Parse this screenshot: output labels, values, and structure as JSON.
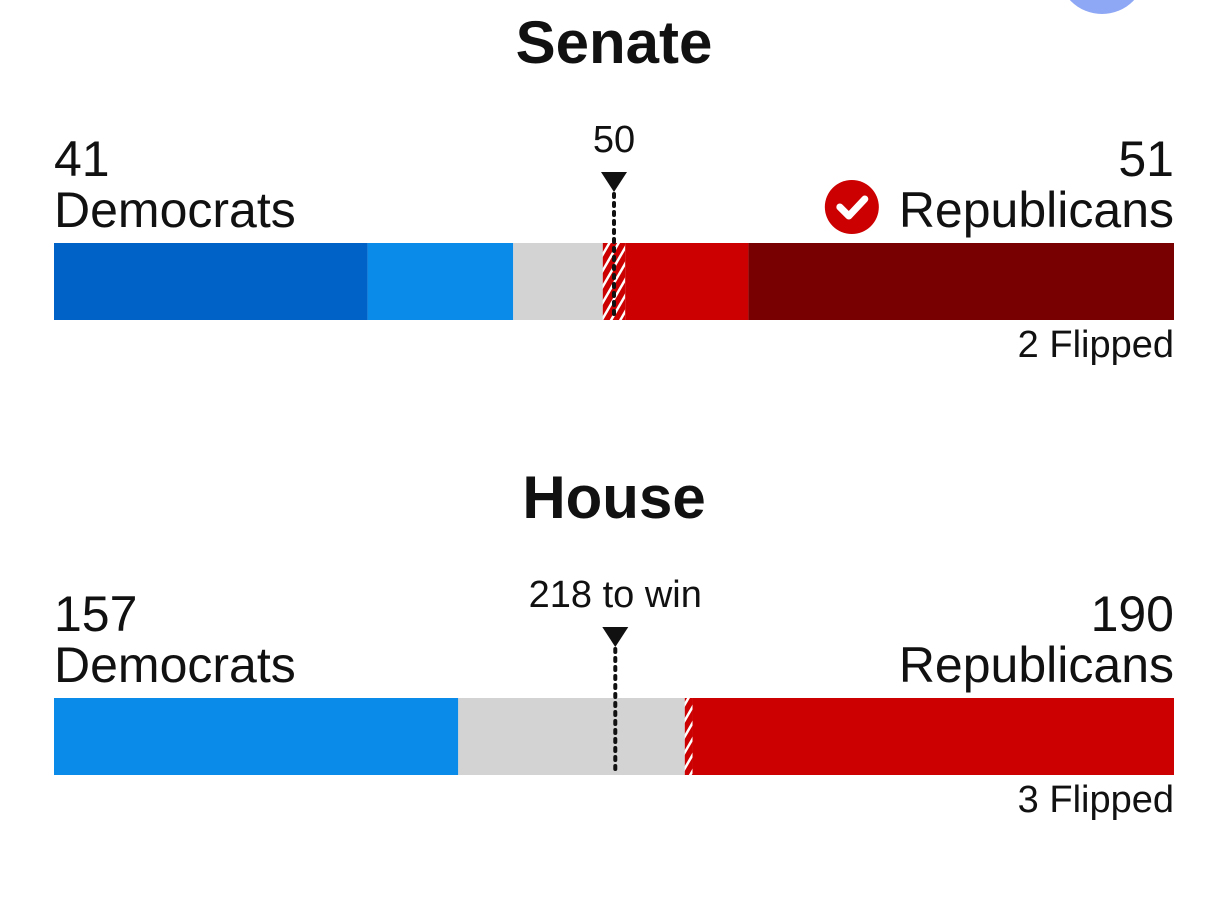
{
  "chart_data": [
    {
      "type": "seat-bar",
      "title": "Senate",
      "xlim": [
        0,
        100
      ],
      "threshold": 50,
      "winner": "right",
      "left": {
        "count": 41,
        "label": "Democrats"
      },
      "right": {
        "count": 51,
        "label": "Republicans"
      },
      "segments": [
        {
          "value": 28,
          "color": "#0061c6"
        },
        {
          "value": 13,
          "color": "#0a8be9"
        },
        {
          "value": 8,
          "color": "#d3d3d3"
        },
        {
          "value": 2,
          "color": "#cc0000",
          "hatched": true,
          "label": "2 Flipped"
        },
        {
          "value": 11,
          "color": "#cc0000"
        },
        {
          "value": 38,
          "color": "#780000"
        }
      ]
    },
    {
      "type": "seat-bar",
      "title": "House",
      "xlim": [
        0,
        435
      ],
      "threshold": {
        "value": 218,
        "label": "218 to win"
      },
      "left": {
        "count": 157,
        "label": "Democrats"
      },
      "right": {
        "count": 190,
        "label": "Republicans"
      },
      "segments": [
        {
          "value": 157,
          "color": "#0a8be9"
        },
        {
          "value": 88,
          "color": "#d3d3d3"
        },
        {
          "value": 3,
          "color": "#cc0000",
          "hatched": true,
          "label": "3 Flipped"
        },
        {
          "value": 187,
          "color": "#cc0000"
        }
      ]
    }
  ]
}
